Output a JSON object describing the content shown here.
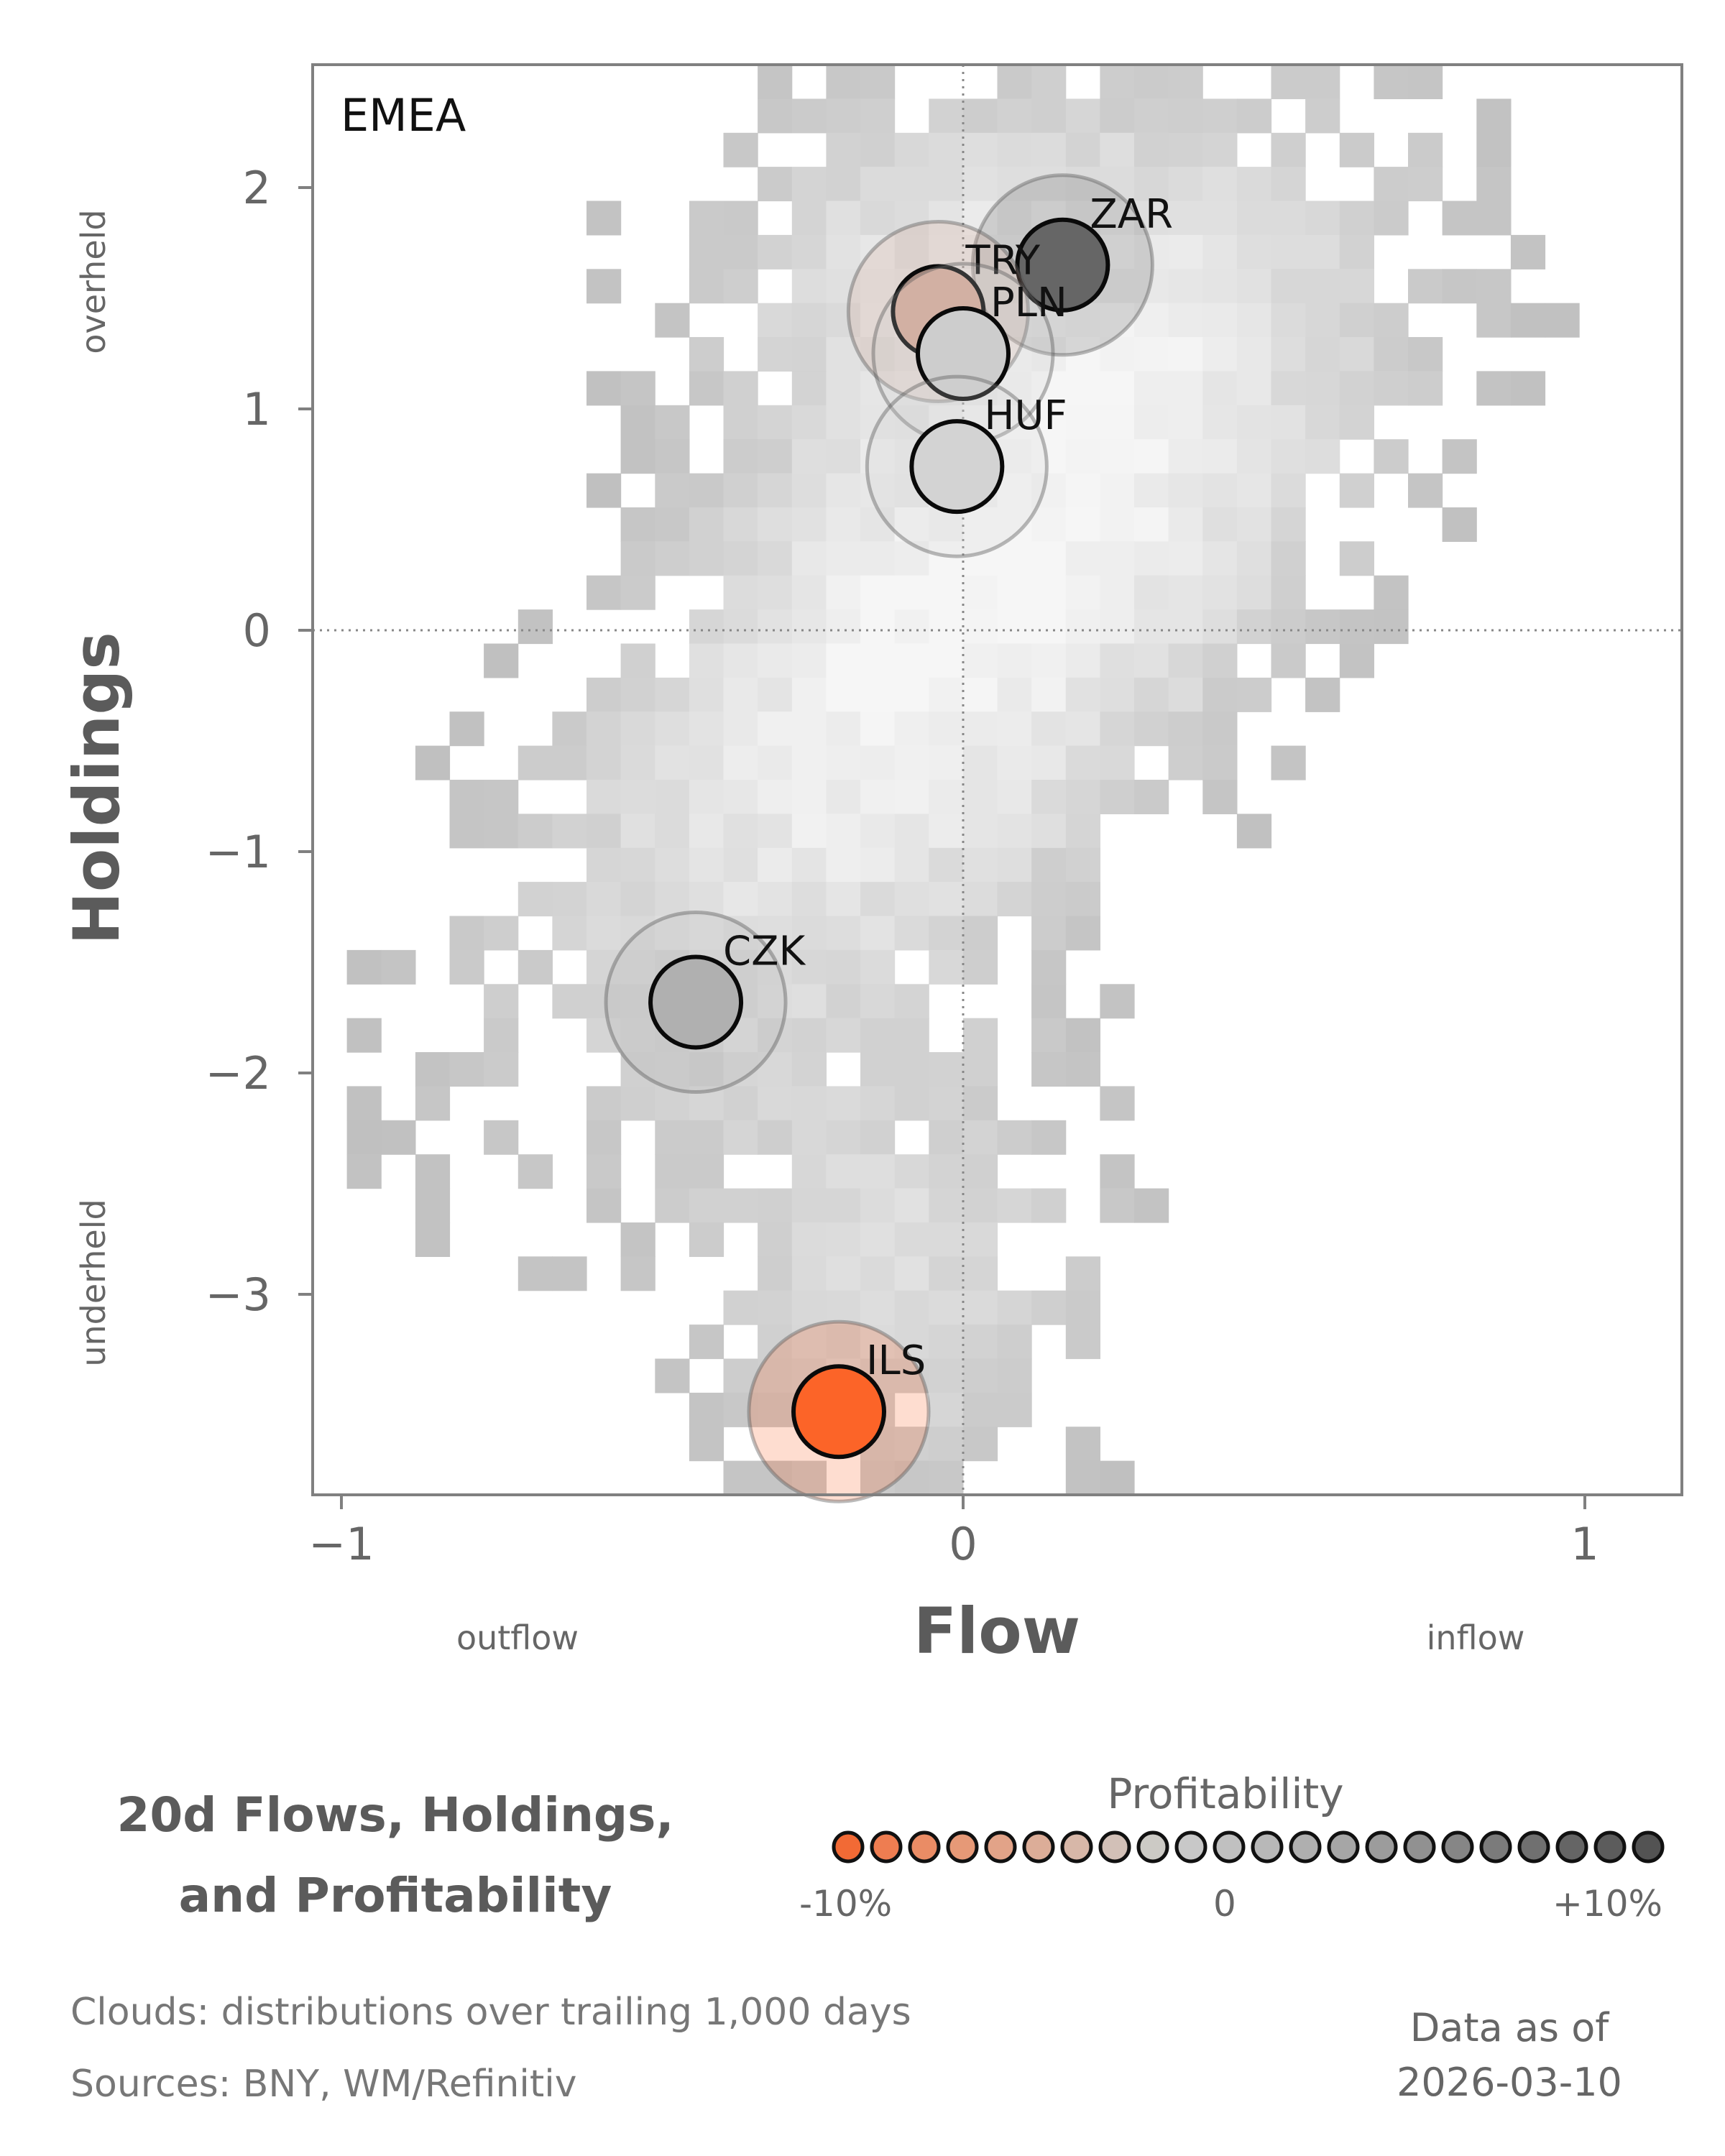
{
  "chart_data": {
    "type": "scatter",
    "panel_label": "EMEA",
    "xlabel": "Flow",
    "ylabel": "Holdings",
    "x_notes": {
      "left": "outflow",
      "right": "inflow"
    },
    "y_notes": {
      "top": "overheld",
      "bottom": "underheld"
    },
    "xlim": [
      -1.05,
      1.15
    ],
    "ylim": [
      -3.9,
      2.55
    ],
    "x_ticks": [
      -1,
      0,
      1
    ],
    "x_tick_labels": [
      "−1",
      "0",
      "1"
    ],
    "y_ticks": [
      2,
      1,
      0,
      -1,
      -2,
      -3
    ],
    "y_tick_labels": [
      "2",
      "1",
      "0",
      "−1",
      "−2",
      "−3"
    ],
    "reference_lines": {
      "x": 0,
      "y": 0
    },
    "background": "historical distribution clouds (grey density)",
    "points": [
      {
        "label": "ZAR",
        "x": 0.16,
        "y": 1.65,
        "profitability_pct": 9,
        "color": "#666666"
      },
      {
        "label": "TRY",
        "x": -0.04,
        "y": 1.44,
        "profitability_pct": -3,
        "color": "#d4a898"
      },
      {
        "label": "PLN",
        "x": 0.0,
        "y": 1.25,
        "profitability_pct": 1,
        "color": "#cdcdcd"
      },
      {
        "label": "HUF",
        "x": -0.01,
        "y": 0.74,
        "profitability_pct": 0,
        "color": "#d3d3d3"
      },
      {
        "label": "CZK",
        "x": -0.43,
        "y": -1.68,
        "profitability_pct": 5,
        "color": "#b0b0b0"
      },
      {
        "label": "ILS",
        "x": -0.2,
        "y": -3.53,
        "profitability_pct": -10,
        "color": "#fc6428"
      }
    ]
  },
  "title_lines": [
    "20d Flows, Holdings,",
    "and Profitability"
  ],
  "legend": {
    "title": "Profitability",
    "min_label": "-10%",
    "mid_label": "0",
    "max_label": "+10%",
    "colors": [
      "#f26a35",
      "#ee7d51",
      "#ea8c65",
      "#e69977",
      "#e2a388",
      "#dcad98",
      "#d7b7a8",
      "#d2c0b7",
      "#cccac5",
      "#c8c8c8",
      "#c0c0c0",
      "#b8b8b8",
      "#afafaf",
      "#a6a6a6",
      "#9c9c9c",
      "#919191",
      "#868686",
      "#7b7b7b",
      "#707070",
      "#656565",
      "#5c5c5c",
      "#535353"
    ]
  },
  "footer": {
    "clouds": "Clouds:  distributions over trailing 1,000 days",
    "sources": "Sources:  BNY, WM/Refinitiv",
    "asof_label": "Data as of",
    "asof_date": "2026-03-10"
  }
}
